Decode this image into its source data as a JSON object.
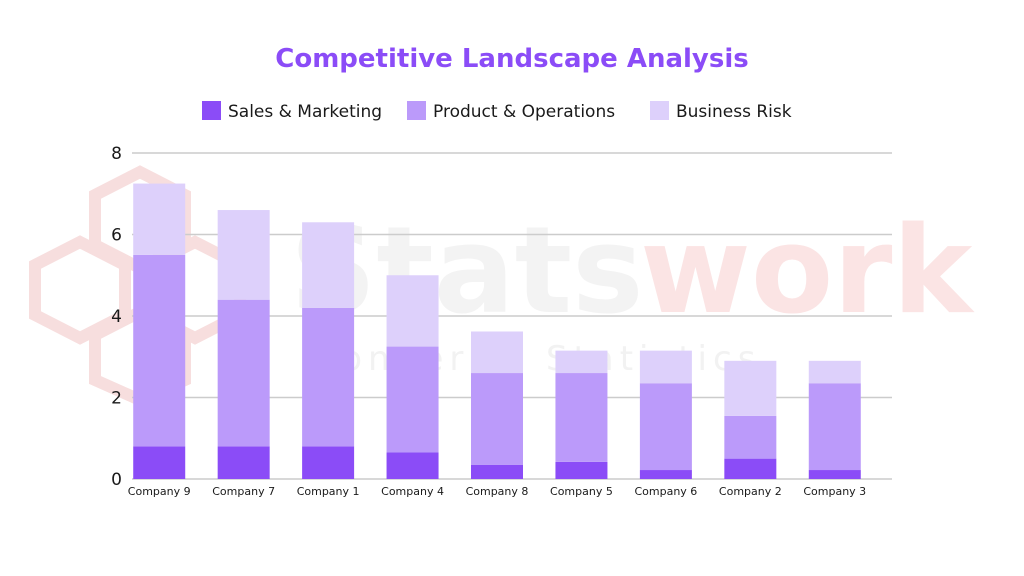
{
  "chart_data": {
    "type": "bar",
    "stacked": true,
    "title": "Competitive Landscape Analysis",
    "categories": [
      "Company 9",
      "Company 7",
      "Company 1",
      "Company 4",
      "Company 8",
      "Company 5",
      "Company 6",
      "Company 2",
      "Company 3"
    ],
    "series": [
      {
        "name": "Sales & Marketing",
        "color": "#8b4cf7",
        "values": [
          0.8,
          0.8,
          0.8,
          0.65,
          0.35,
          0.42,
          0.22,
          0.5,
          0.22
        ]
      },
      {
        "name": "Product & Operations",
        "color": "#bb9afa",
        "values": [
          4.7,
          3.6,
          3.4,
          2.6,
          2.25,
          2.18,
          2.13,
          1.05,
          2.13
        ]
      },
      {
        "name": "Business Risk",
        "color": "#ddd0fb",
        "values": [
          1.75,
          2.2,
          2.1,
          1.75,
          1.02,
          0.55,
          0.8,
          1.35,
          0.55
        ]
      }
    ],
    "ylim": [
      0,
      8
    ],
    "yticks": [
      0,
      2,
      4,
      6,
      8
    ],
    "grid": true,
    "legend_position": "top",
    "title_color": "#8b4cf7"
  },
  "watermark": {
    "text_main": "Stats",
    "text_accent": "work",
    "subtext": "Pioneer in Statistics"
  }
}
